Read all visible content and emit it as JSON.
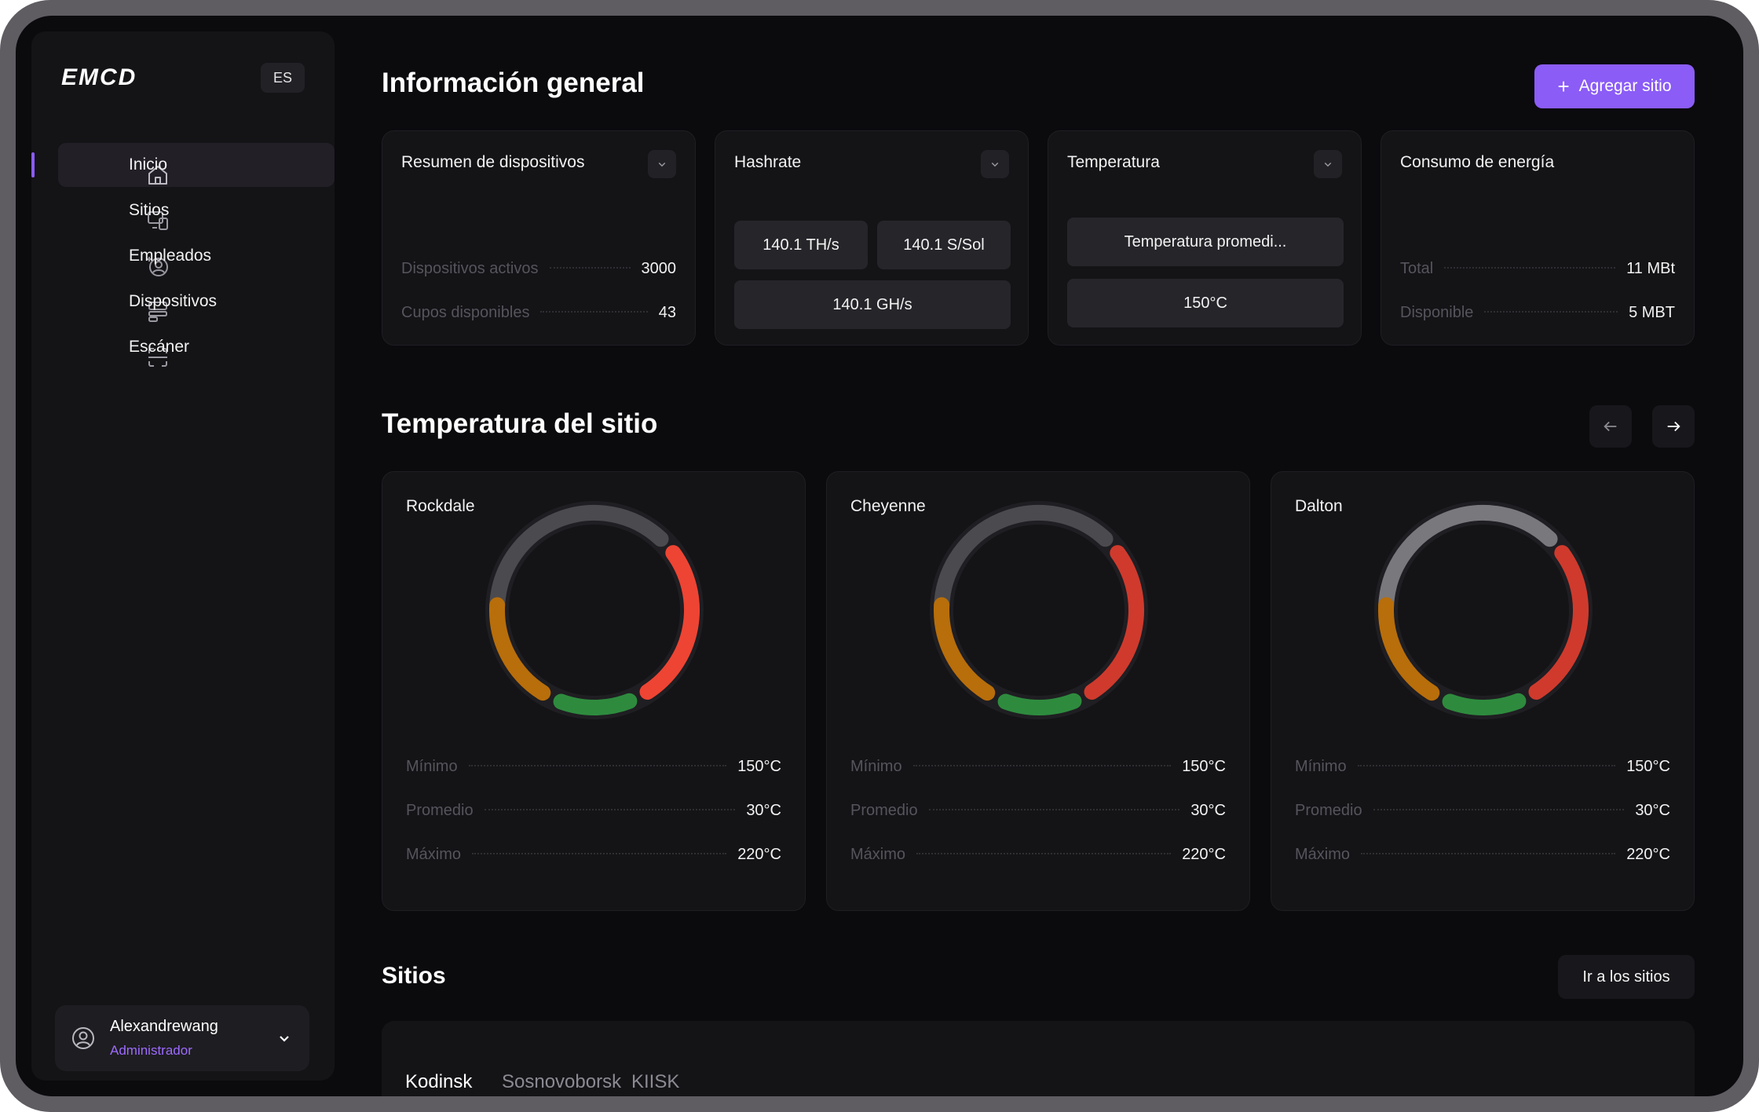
{
  "brand": {
    "logo": "EMCD",
    "language": "ES"
  },
  "sidebar": {
    "items": [
      {
        "label": "Inicio",
        "icon": "home-icon",
        "active": true
      },
      {
        "label": "Sitios",
        "icon": "sites-icon",
        "active": false
      },
      {
        "label": "Empleados",
        "icon": "employees-icon",
        "active": false
      },
      {
        "label": "Dispositivos",
        "icon": "devices-icon",
        "active": false
      },
      {
        "label": "Escáner",
        "icon": "scanner-icon",
        "active": false
      }
    ],
    "user": {
      "name": "Alexandrewang",
      "role": "Administrador"
    }
  },
  "overview": {
    "title": "Información general",
    "add_button": "Agregar sitio",
    "devices": {
      "title": "Resumen de dispositivos",
      "active_label": "Dispositivos activos",
      "active_value": "3000",
      "slots_label": "Cupos disponibles",
      "slots_value": "43"
    },
    "hashrate": {
      "title": "Hashrate",
      "pill1": "140.1 TH/s",
      "pill2": "140.1 S/Sol",
      "pill3": "140.1 GH/s"
    },
    "temperature": {
      "title": "Temperatura",
      "pill1": "Temperatura promedi...",
      "pill2": "150°C"
    },
    "energy": {
      "title": "Consumo de energía",
      "total_label": "Total",
      "total_value": "11 MBt",
      "available_label": "Disponible",
      "available_value": "5 MBT"
    }
  },
  "site_temperature": {
    "title": "Temperatura del sitio",
    "sites": [
      {
        "name": "Rockdale",
        "min_label": "Mínimo",
        "min": "150°C",
        "avg_label": "Promedio",
        "avg": "30°C",
        "max_label": "Máximo",
        "max": "220°C",
        "gray": "#4b4a4f",
        "red": "#ee4433",
        "green": "#2e8b3e",
        "orange": "#b86e0a"
      },
      {
        "name": "Cheyenne",
        "min_label": "Mínimo",
        "min": "150°C",
        "avg_label": "Promedio",
        "avg": "30°C",
        "max_label": "Máximo",
        "max": "220°C",
        "gray": "#4b4a4f",
        "red": "#cf3a2d",
        "green": "#2e8b3e",
        "orange": "#b86e0a"
      },
      {
        "name": "Dalton",
        "min_label": "Mínimo",
        "min": "150°C",
        "avg_label": "Promedio",
        "avg": "30°C",
        "max_label": "Máximo",
        "max": "220°C",
        "gray": "#79787c",
        "red": "#cf3a2d",
        "green": "#2e8b3e",
        "orange": "#b86e0a"
      }
    ]
  },
  "sites_section": {
    "title": "Sitios",
    "go_button": "Ir a los sitios",
    "tabs": [
      "Kodinsk",
      "Sosnovoborsk",
      "KIISK"
    ]
  },
  "colors": {
    "accent": "#8b5cf6",
    "background": "#0b0a0d",
    "card": "#141316"
  }
}
